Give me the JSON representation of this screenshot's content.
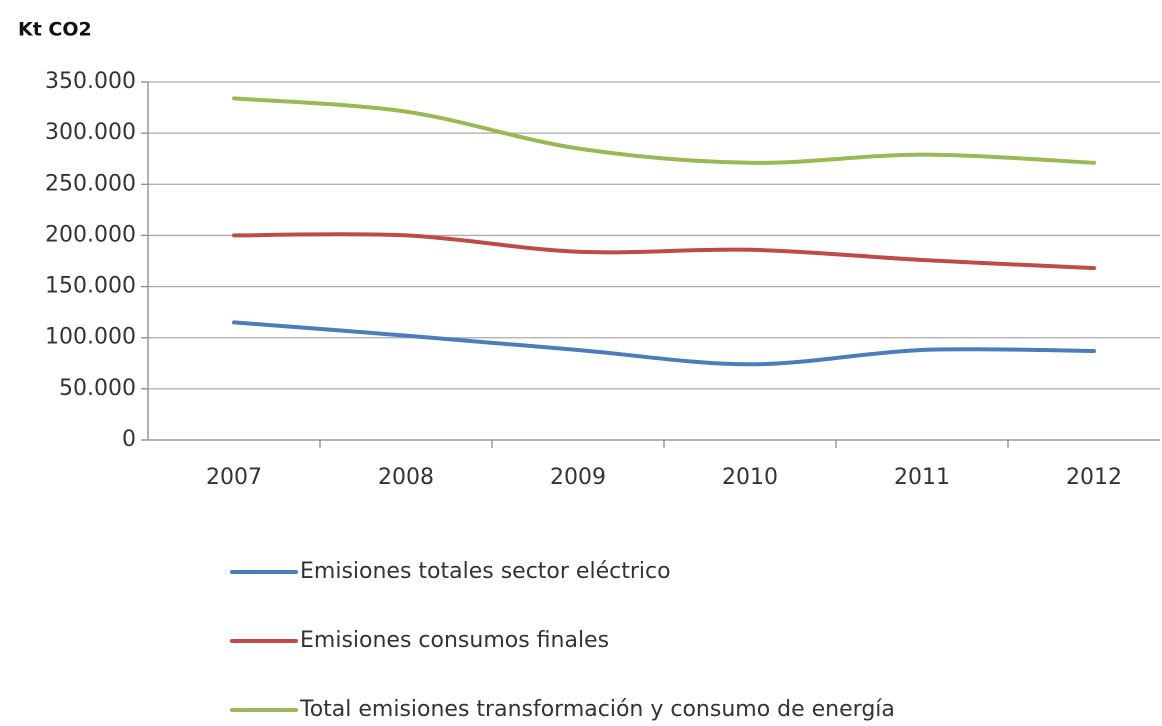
{
  "chart_data": {
    "type": "line",
    "y_label": "Kt CO2",
    "categories": [
      "2007",
      "2008",
      "2009",
      "2010",
      "2011",
      "2012"
    ],
    "series": [
      {
        "name": "Emisiones totales sector eléctrico",
        "color": "#4a7ebb",
        "values": [
          115000,
          102000,
          88000,
          74000,
          88000,
          87000
        ]
      },
      {
        "name": "Emisiones consumos finales",
        "color": "#be4b48",
        "values": [
          200000,
          200000,
          184000,
          186000,
          176000,
          168000
        ]
      },
      {
        "name": "Total emisiones transformación y consumo de energía",
        "color": "#98b954",
        "values": [
          334000,
          321000,
          285000,
          271000,
          279000,
          271000
        ]
      }
    ],
    "ylim": [
      0,
      350000
    ],
    "yticks": [
      0,
      {
        "value": 50000,
        "label": "50.000"
      },
      {
        "value": 100000,
        "label": "100.000"
      },
      {
        "value": 150000,
        "label": "150.000"
      },
      {
        "value": 200000,
        "label": "200.000"
      },
      {
        "value": 250000,
        "label": "250.000"
      },
      {
        "value": 300000,
        "label": "300.000"
      },
      {
        "value": 350000,
        "label": "350.000"
      }
    ],
    "grid": true,
    "smooth": true,
    "legend": "bottom"
  }
}
